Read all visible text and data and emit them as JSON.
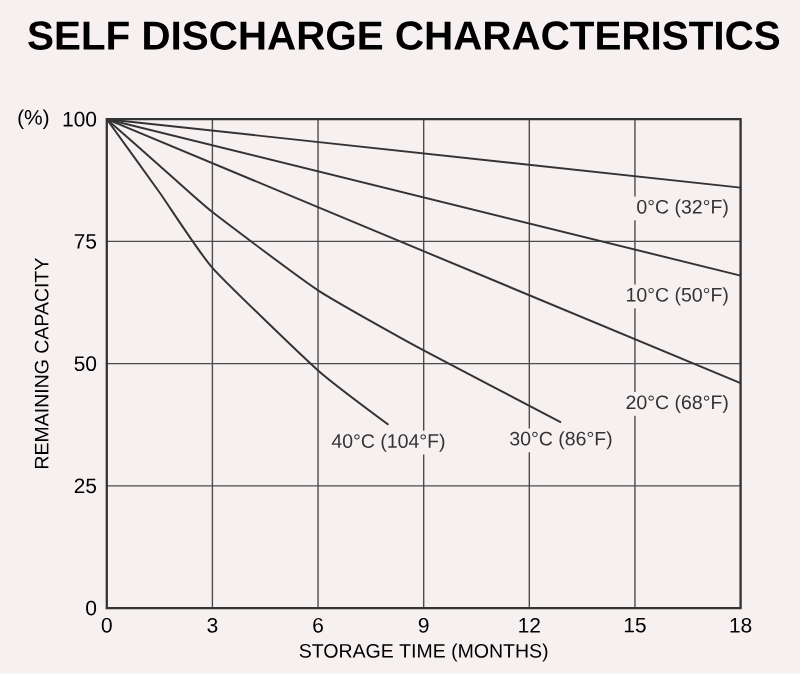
{
  "chart_data": {
    "type": "line",
    "title": "SELF DISCHARGE CHARACTERISTICS",
    "xlabel": "STORAGE TIME (MONTHS)",
    "ylabel": "REMAINING CAPACITY",
    "annotations": [
      "(%)"
    ],
    "xlim": [
      0,
      18
    ],
    "xticks": [
      0,
      3,
      6,
      9,
      12,
      15,
      18
    ],
    "ylim": [
      0,
      100
    ],
    "yticks": [
      0,
      25,
      50,
      75,
      100
    ],
    "grid": true,
    "marker": "none",
    "line_style": "solid",
    "legend": false,
    "series": [
      {
        "name": "0°C (32°F)",
        "color": "#333333",
        "x": [
          0,
          18
        ],
        "values": [
          100,
          86
        ]
      },
      {
        "name": "10°C (50°F)",
        "color": "#333333",
        "x": [
          0,
          18
        ],
        "values": [
          100,
          68
        ]
      },
      {
        "name": "20°C (68°F)",
        "color": "#333333",
        "x": [
          0,
          18
        ],
        "values": [
          100,
          46
        ]
      },
      {
        "name": "30°C (86°F)",
        "color": "#333333",
        "x": [
          0,
          1.5,
          3,
          6,
          9,
          12.9
        ],
        "values": [
          100,
          90.5,
          81,
          65,
          52.7,
          38
        ]
      },
      {
        "name": "40°C (104°F)",
        "color": "#333333",
        "x": [
          0,
          1.5,
          3,
          6,
          8
        ],
        "values": [
          100,
          85,
          69.6,
          48.6,
          37.5
        ]
      }
    ]
  }
}
